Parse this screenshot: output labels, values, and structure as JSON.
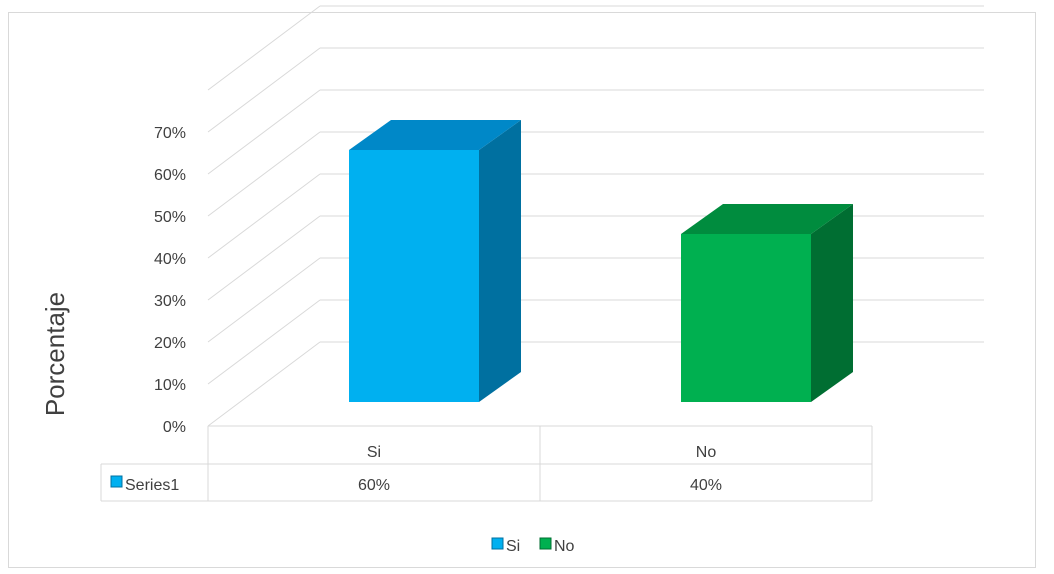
{
  "chart_data": {
    "type": "bar",
    "title": "",
    "xlabel": "",
    "ylabel": "Porcentaje",
    "ylim": [
      0,
      80
    ],
    "yticks": [
      "0%",
      "10%",
      "20%",
      "30%",
      "40%",
      "50%",
      "60%",
      "70%"
    ],
    "categories": [
      "Si",
      "No"
    ],
    "series": [
      {
        "name": "Series1",
        "values": [
          60,
          40
        ],
        "value_labels": [
          "60%",
          "40%"
        ]
      }
    ],
    "bar_colors": {
      "Si": {
        "front": "#00b0f0",
        "side": "#0070a0",
        "top": "#0088c8"
      },
      "No": {
        "front": "#00b050",
        "side": "#006e32",
        "top": "#008c3e"
      }
    },
    "grid": true,
    "data_table": true,
    "legend": {
      "position": "bottom",
      "items": [
        "Si",
        "No"
      ]
    }
  }
}
